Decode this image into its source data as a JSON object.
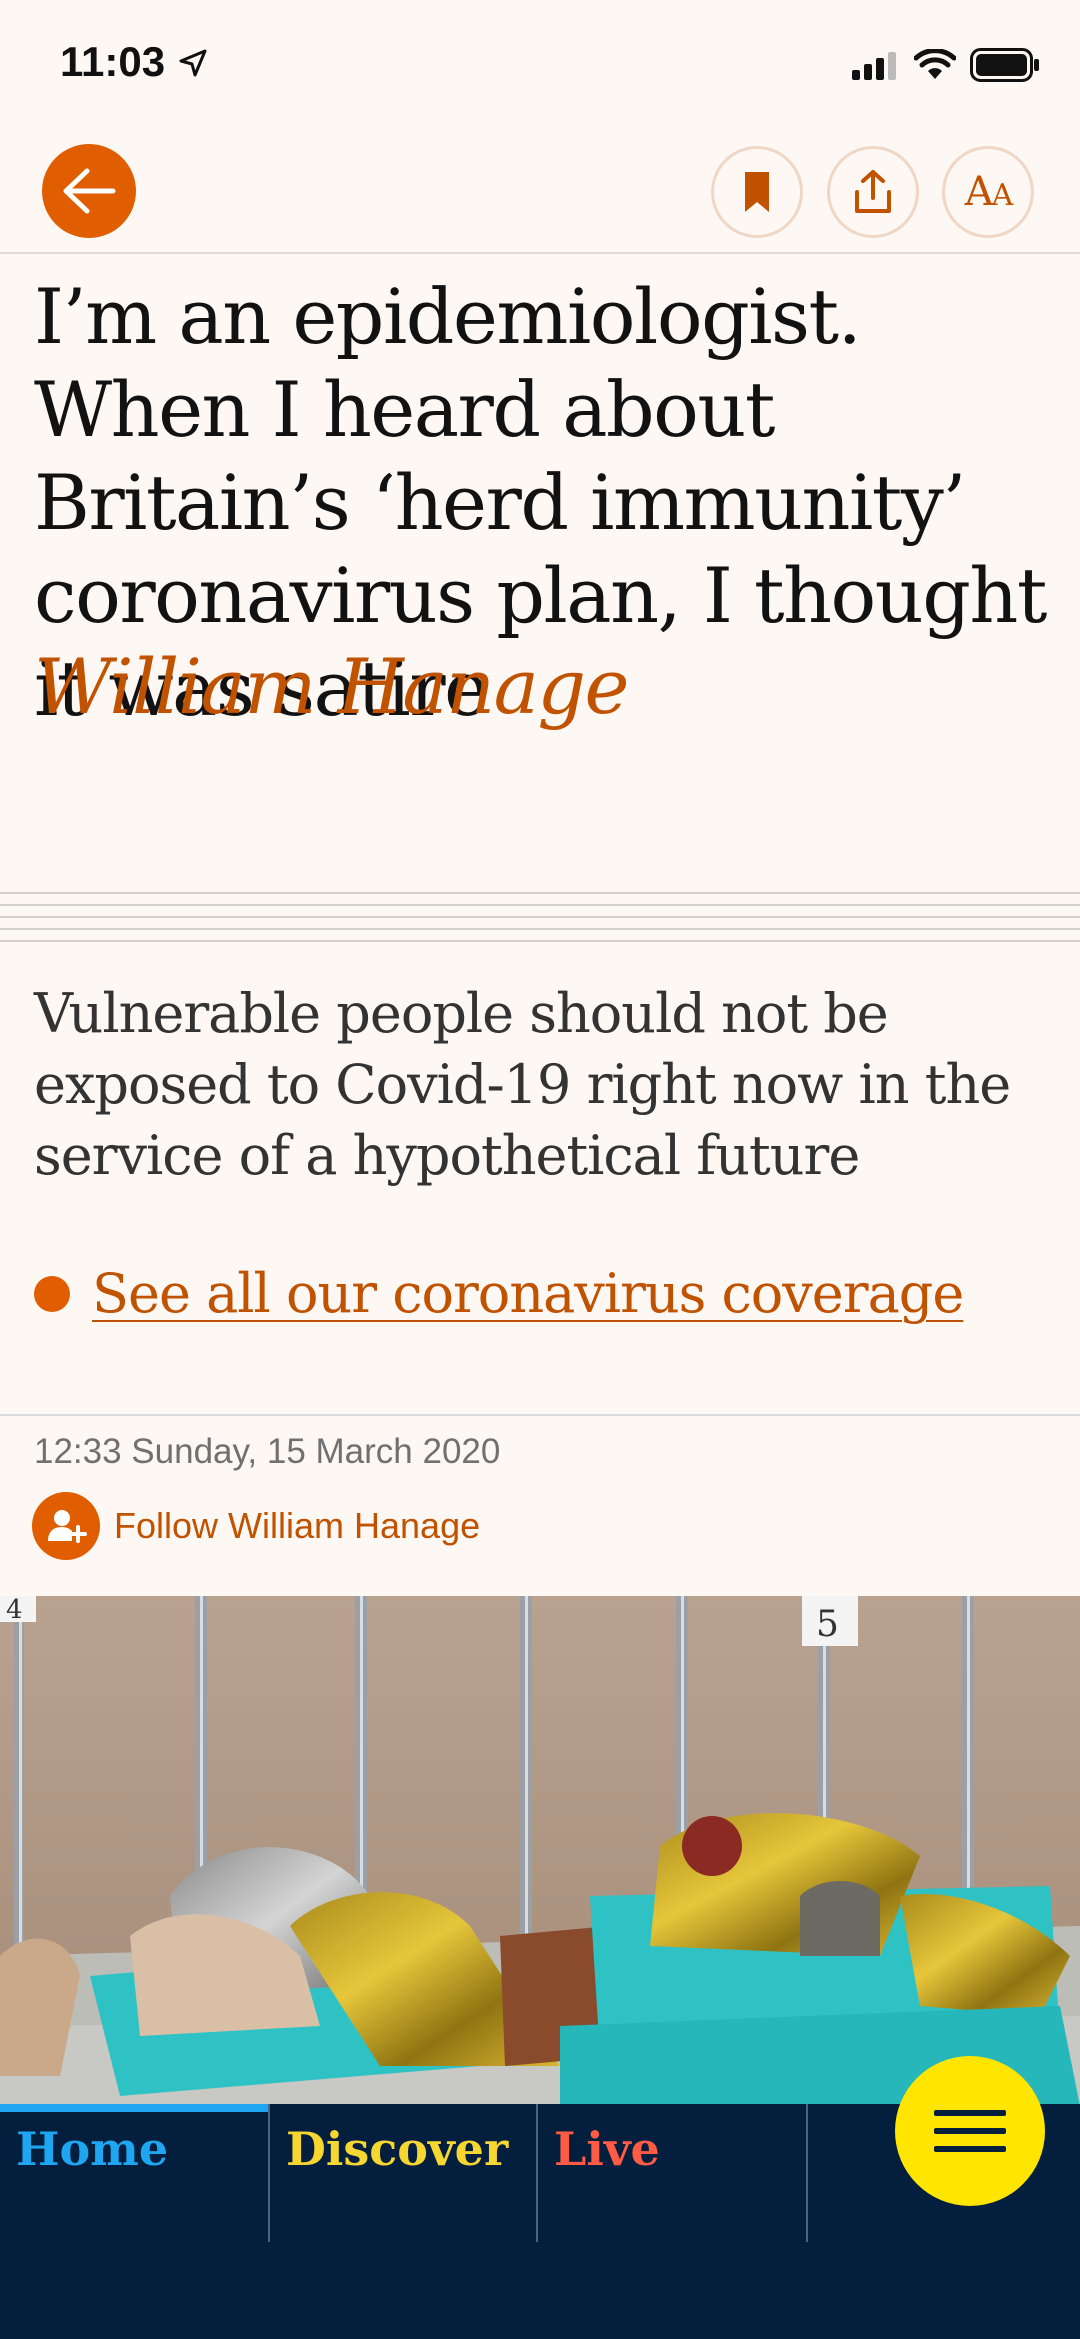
{
  "status_bar": {
    "time": "11:03",
    "icons": [
      "location-arrow-icon",
      "signal-icon",
      "wifi-icon",
      "battery-icon"
    ]
  },
  "toolbar": {
    "buttons": [
      "back-arrow-icon",
      "bookmark-icon",
      "share-icon",
      "text-size-icon"
    ],
    "text_size_label": "AA"
  },
  "article": {
    "headline": "I’m an epidemiologist. When I heard about Britain’s ‘herd immunity’ coronavirus plan, I thought it was satire",
    "byline": "William Hanage",
    "standfirst": "Vulnerable people should not be exposed to Covid-19 right now in the service of a hypothetical future",
    "coverage_link": "See all our coronavirus coverage",
    "dateline": "12:33 Sunday, 15 March 2020",
    "follow_label": "Follow William Hanage",
    "photo_numbers": [
      "4",
      "5"
    ]
  },
  "bottom_nav": {
    "tabs": [
      {
        "label": "Home",
        "color": "#1fa6f3",
        "active": true
      },
      {
        "label": "Discover",
        "color": "#f6d631",
        "active": false
      },
      {
        "label": "Live",
        "color": "#ff5b45",
        "active": false
      }
    ],
    "menu_icon": "hamburger-menu-icon"
  },
  "colors": {
    "accent": "#e05e00",
    "background": "#fdf8f4",
    "nav_background": "#041f3d",
    "menu_button": "#ffe500"
  }
}
